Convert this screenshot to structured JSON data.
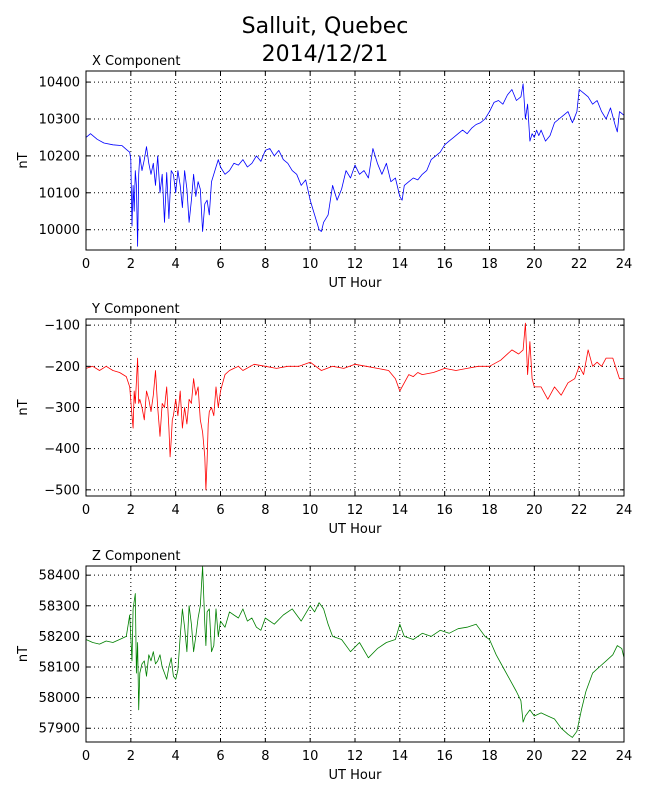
{
  "title_line1": "Salluit, Quebec",
  "title_line2": "2014/12/21",
  "chart_data": [
    {
      "type": "line",
      "title": "X Component",
      "xlabel": "UT Hour",
      "ylabel": "nT",
      "xlim": [
        0,
        24
      ],
      "ylim": [
        9945,
        10430
      ],
      "xticks": [
        0,
        2,
        4,
        6,
        8,
        10,
        12,
        14,
        16,
        18,
        20,
        22,
        24
      ],
      "yticks": [
        10000,
        10100,
        10200,
        10300,
        10400
      ],
      "grid": true,
      "color": "#0000ff",
      "series": [
        {
          "x": [
            0,
            0.2,
            0.5,
            0.8,
            1.2,
            1.6,
            1.85,
            1.95,
            2.0,
            2.05,
            2.1,
            2.15,
            2.2,
            2.25,
            2.3,
            2.35,
            2.4,
            2.45,
            2.5,
            2.6,
            2.7,
            2.8,
            2.9,
            3.0,
            3.1,
            3.2,
            3.3,
            3.4,
            3.5,
            3.6,
            3.7,
            3.8,
            3.9,
            4.0,
            4.1,
            4.2,
            4.3,
            4.4,
            4.5,
            4.6,
            4.7,
            4.8,
            4.9,
            5.0,
            5.1,
            5.2,
            5.3,
            5.4,
            5.5,
            5.6,
            5.7,
            5.8,
            5.9,
            6.0,
            6.2,
            6.4,
            6.6,
            6.8,
            7.0,
            7.2,
            7.4,
            7.6,
            7.8,
            8.0,
            8.2,
            8.4,
            8.6,
            8.8,
            9.0,
            9.2,
            9.4,
            9.6,
            9.8,
            10.0,
            10.2,
            10.4,
            10.5,
            10.6,
            10.8,
            11.0,
            11.2,
            11.4,
            11.6,
            11.8,
            12.0,
            12.2,
            12.4,
            12.6,
            12.8,
            13.0,
            13.2,
            13.4,
            13.6,
            13.8,
            14.0,
            14.1,
            14.2,
            14.4,
            14.6,
            14.8,
            15.0,
            15.2,
            15.4,
            15.6,
            15.8,
            16.0,
            16.2,
            16.4,
            16.6,
            16.8,
            17.0,
            17.2,
            17.4,
            17.6,
            17.8,
            18.0,
            18.2,
            18.4,
            18.6,
            18.8,
            19.0,
            19.2,
            19.4,
            19.5,
            19.6,
            19.7,
            19.8,
            19.9,
            20.0,
            20.1,
            20.2,
            20.3,
            20.5,
            20.7,
            20.9,
            21.1,
            21.3,
            21.5,
            21.7,
            21.9,
            22.0,
            22.2,
            22.4,
            22.6,
            22.8,
            23.0,
            23.2,
            23.4,
            23.6,
            23.7,
            23.8,
            24.0
          ],
          "y": [
            10250,
            10260,
            10245,
            10235,
            10230,
            10228,
            10215,
            10210,
            10190,
            10010,
            10120,
            10050,
            10160,
            10120,
            9955,
            10150,
            10200,
            10180,
            10160,
            10190,
            10225,
            10180,
            10150,
            10180,
            10120,
            10200,
            10100,
            10150,
            10020,
            10155,
            10030,
            10160,
            10150,
            10100,
            10160,
            10120,
            10060,
            10160,
            10110,
            10020,
            10080,
            10150,
            10090,
            10130,
            10110,
            9995,
            10070,
            10080,
            10040,
            10130,
            10150,
            10170,
            10190,
            10170,
            10150,
            10160,
            10180,
            10175,
            10190,
            10170,
            10180,
            10200,
            10185,
            10215,
            10220,
            10200,
            10215,
            10190,
            10180,
            10160,
            10150,
            10120,
            10135,
            10080,
            10040,
            10000,
            9995,
            10020,
            10040,
            10120,
            10080,
            10110,
            10160,
            10140,
            10175,
            10150,
            10160,
            10140,
            10220,
            10180,
            10150,
            10180,
            10130,
            10140,
            10090,
            10080,
            10120,
            10130,
            10140,
            10135,
            10150,
            10160,
            10190,
            10200,
            10210,
            10230,
            10240,
            10250,
            10260,
            10270,
            10260,
            10275,
            10285,
            10290,
            10300,
            10320,
            10345,
            10350,
            10340,
            10365,
            10380,
            10350,
            10360,
            10395,
            10300,
            10340,
            10240,
            10260,
            10250,
            10270,
            10255,
            10270,
            10240,
            10255,
            10290,
            10300,
            10310,
            10320,
            10290,
            10320,
            10380,
            10370,
            10360,
            10340,
            10350,
            10320,
            10300,
            10330,
            10285,
            10265,
            10320,
            10310
          ]
        }
      ]
    },
    {
      "type": "line",
      "title": "Y Component",
      "xlabel": "UT Hour",
      "ylabel": "nT",
      "xlim": [
        0,
        24
      ],
      "ylim": [
        -515,
        -85
      ],
      "xticks": [
        0,
        2,
        4,
        6,
        8,
        10,
        12,
        14,
        16,
        18,
        20,
        22,
        24
      ],
      "yticks": [
        -100,
        -200,
        -300,
        -400,
        -500
      ],
      "grid": true,
      "color": "#ff0000",
      "series": [
        {
          "x": [
            0,
            0.3,
            0.6,
            0.9,
            1.2,
            1.5,
            1.8,
            1.95,
            2.05,
            2.1,
            2.15,
            2.2,
            2.3,
            2.35,
            2.4,
            2.5,
            2.6,
            2.7,
            2.8,
            2.9,
            3.0,
            3.1,
            3.2,
            3.3,
            3.4,
            3.5,
            3.6,
            3.7,
            3.75,
            3.8,
            3.85,
            3.9,
            4.0,
            4.1,
            4.2,
            4.3,
            4.4,
            4.5,
            4.6,
            4.7,
            4.8,
            4.9,
            5.0,
            5.1,
            5.2,
            5.3,
            5.35,
            5.4,
            5.45,
            5.5,
            5.6,
            5.7,
            5.8,
            5.9,
            6.0,
            6.2,
            6.4,
            6.6,
            6.8,
            7.0,
            7.5,
            8.0,
            8.5,
            9.0,
            9.5,
            10.0,
            10.5,
            11.0,
            11.5,
            12.0,
            12.5,
            13.0,
            13.5,
            13.8,
            14.0,
            14.2,
            14.4,
            14.6,
            14.8,
            15.0,
            15.5,
            16.0,
            16.5,
            17.0,
            17.5,
            18.0,
            18.5,
            19.0,
            19.3,
            19.5,
            19.6,
            19.7,
            19.8,
            19.9,
            20.0,
            20.3,
            20.6,
            20.9,
            21.2,
            21.5,
            21.8,
            22.0,
            22.2,
            22.4,
            22.6,
            22.8,
            23.0,
            23.2,
            23.5,
            23.8,
            24.0
          ],
          "y": [
            -205,
            -200,
            -210,
            -200,
            -210,
            -215,
            -225,
            -250,
            -320,
            -350,
            -260,
            -290,
            -180,
            -290,
            -280,
            -300,
            -330,
            -260,
            -280,
            -310,
            -270,
            -210,
            -300,
            -370,
            -290,
            -300,
            -250,
            -350,
            -420,
            -380,
            -330,
            -320,
            -280,
            -320,
            -260,
            -350,
            -300,
            -340,
            -280,
            -290,
            -230,
            -270,
            -250,
            -330,
            -360,
            -420,
            -500,
            -430,
            -340,
            -310,
            -300,
            -320,
            -250,
            -300,
            -260,
            -220,
            -210,
            -205,
            -200,
            -210,
            -195,
            -200,
            -205,
            -200,
            -200,
            -190,
            -210,
            -200,
            -205,
            -195,
            -200,
            -205,
            -210,
            -230,
            -260,
            -240,
            -220,
            -225,
            -215,
            -220,
            -215,
            -205,
            -210,
            -205,
            -200,
            -200,
            -185,
            -160,
            -170,
            -160,
            -95,
            -220,
            -140,
            -230,
            -250,
            -250,
            -280,
            -250,
            -270,
            -240,
            -230,
            -200,
            -220,
            -160,
            -200,
            -190,
            -200,
            -180,
            -180,
            -230,
            -230
          ]
        }
      ]
    },
    {
      "type": "line",
      "title": "Z Component",
      "xlabel": "UT Hour",
      "ylabel": "nT",
      "xlim": [
        0,
        24
      ],
      "ylim": [
        57855,
        58430
      ],
      "xticks": [
        0,
        2,
        4,
        6,
        8,
        10,
        12,
        14,
        16,
        18,
        20,
        22,
        24
      ],
      "yticks": [
        57900,
        58000,
        58100,
        58200,
        58300,
        58400
      ],
      "grid": true,
      "color": "#008000",
      "series": [
        {
          "x": [
            0,
            0.3,
            0.6,
            0.9,
            1.2,
            1.5,
            1.8,
            1.95,
            2.05,
            2.1,
            2.2,
            2.25,
            2.3,
            2.35,
            2.4,
            2.5,
            2.6,
            2.7,
            2.8,
            2.9,
            3.0,
            3.1,
            3.2,
            3.3,
            3.4,
            3.5,
            3.6,
            3.7,
            3.8,
            3.9,
            4.0,
            4.1,
            4.2,
            4.3,
            4.4,
            4.5,
            4.6,
            4.7,
            4.8,
            4.9,
            5.0,
            5.1,
            5.2,
            5.3,
            5.35,
            5.4,
            5.5,
            5.6,
            5.7,
            5.8,
            5.9,
            6.0,
            6.2,
            6.4,
            6.6,
            6.8,
            7.0,
            7.2,
            7.4,
            7.6,
            7.8,
            8.0,
            8.4,
            8.8,
            9.2,
            9.6,
            10.0,
            10.2,
            10.4,
            10.6,
            10.8,
            11.0,
            11.4,
            11.8,
            12.2,
            12.6,
            13.0,
            13.4,
            13.8,
            14.0,
            14.2,
            14.6,
            15.0,
            15.4,
            15.8,
            16.2,
            16.6,
            17.0,
            17.4,
            17.8,
            18.0,
            18.3,
            18.6,
            18.9,
            19.2,
            19.4,
            19.5,
            19.6,
            19.8,
            20.0,
            20.3,
            20.6,
            20.9,
            21.2,
            21.5,
            21.7,
            21.9,
            22.1,
            22.3,
            22.6,
            22.9,
            23.2,
            23.5,
            23.7,
            23.9,
            24.0
          ],
          "y": [
            58190,
            58180,
            58175,
            58185,
            58180,
            58190,
            58200,
            58270,
            58120,
            58290,
            58340,
            58080,
            58180,
            57960,
            58080,
            58110,
            58120,
            58070,
            58140,
            58120,
            58150,
            58110,
            58120,
            58140,
            58100,
            58080,
            58060,
            58100,
            58130,
            58070,
            58060,
            58090,
            58200,
            58290,
            58230,
            58150,
            58300,
            58240,
            58150,
            58200,
            58260,
            58300,
            58430,
            58240,
            58170,
            58280,
            58290,
            58150,
            58170,
            58290,
            58200,
            58250,
            58230,
            58280,
            58270,
            58260,
            58290,
            58250,
            58260,
            58230,
            58220,
            58260,
            58240,
            58270,
            58290,
            58250,
            58300,
            58280,
            58310,
            58290,
            58240,
            58200,
            58190,
            58150,
            58180,
            58130,
            58160,
            58180,
            58190,
            58240,
            58200,
            58190,
            58210,
            58200,
            58220,
            58210,
            58225,
            58230,
            58240,
            58200,
            58190,
            58140,
            58100,
            58060,
            58020,
            57990,
            57920,
            57940,
            57960,
            57940,
            57950,
            57940,
            57930,
            57900,
            57880,
            57870,
            57890,
            57960,
            58020,
            58080,
            58100,
            58120,
            58140,
            58170,
            58160,
            58130
          ]
        }
      ]
    }
  ]
}
